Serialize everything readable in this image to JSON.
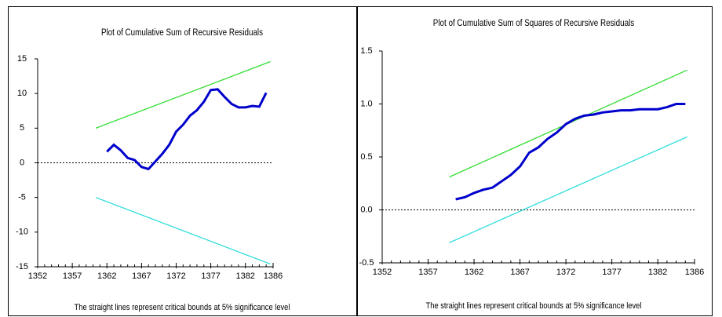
{
  "chart_data": [
    {
      "type": "line",
      "title": "Plot of Cumulative Sum of Recursive Residuals",
      "xlabel": "The straight lines represent critical bounds at 5% significance level",
      "xlim": [
        1352,
        1386
      ],
      "xticks": [
        1352,
        1357,
        1362,
        1367,
        1372,
        1377,
        1382,
        1386
      ],
      "ylim": [
        -15,
        15
      ],
      "yticks": [
        -15,
        -10,
        -5,
        0,
        5,
        10,
        15
      ],
      "reference_line": 0,
      "series": [
        {
          "color": "#0000cc",
          "x": [
            1362,
            1363,
            1364,
            1365,
            1366,
            1367,
            1368,
            1369,
            1370,
            1371,
            1372,
            1373,
            1374,
            1375,
            1376,
            1377,
            1378,
            1379,
            1380,
            1381,
            1382,
            1383,
            1384,
            1385
          ],
          "values": [
            1.6,
            2.6,
            1.8,
            0.7,
            0.4,
            -0.6,
            -0.9,
            0.2,
            1.3,
            2.6,
            4.5,
            5.5,
            6.8,
            7.6,
            8.8,
            10.5,
            10.6,
            9.5,
            8.5,
            8.0,
            8.0,
            8.2,
            8.1,
            10.1
          ]
        },
        {
          "color": "#33dd33",
          "x": [
            1360.4,
            1385.6
          ],
          "values": [
            5.0,
            14.6
          ]
        },
        {
          "color": "#33dddd",
          "x": [
            1360.4,
            1385.6
          ],
          "values": [
            -5.0,
            -14.6
          ]
        }
      ]
    },
    {
      "type": "line",
      "title": "Plot of Cumulative Sum of Squares of Recursive Residuals",
      "xlabel": "The straight lines represent critical bounds at 5% significance level",
      "xlim": [
        1352,
        1386
      ],
      "xticks": [
        1352,
        1357,
        1362,
        1367,
        1372,
        1377,
        1382,
        1386
      ],
      "ylim": [
        -0.5,
        1.5
      ],
      "yticks": [
        -0.5,
        {
          "value": 0,
          "label": "0.0"
        },
        0.5,
        {
          "value": 1,
          "label": "1.0"
        },
        1.5
      ],
      "reference_line": 0,
      "series": [
        {
          "color": "#0000cc",
          "x": [
            1360,
            1361,
            1362,
            1363,
            1364,
            1365,
            1366,
            1367,
            1368,
            1369,
            1370,
            1371,
            1372,
            1373,
            1374,
            1375,
            1376,
            1377,
            1378,
            1379,
            1380,
            1381,
            1382,
            1383,
            1384,
            1385
          ],
          "values": [
            0.1,
            0.12,
            0.16,
            0.19,
            0.21,
            0.27,
            0.33,
            0.41,
            0.54,
            0.59,
            0.67,
            0.73,
            0.81,
            0.86,
            0.89,
            0.9,
            0.92,
            0.93,
            0.94,
            0.94,
            0.95,
            0.95,
            0.95,
            0.97,
            1.0,
            1.0
          ]
        },
        {
          "color": "#33dd33",
          "x": [
            1359.3,
            1385.2
          ],
          "values": [
            0.31,
            1.32
          ]
        },
        {
          "color": "#33dddd",
          "x": [
            1359.3,
            1385.2
          ],
          "values": [
            -0.31,
            0.69
          ]
        }
      ]
    }
  ]
}
